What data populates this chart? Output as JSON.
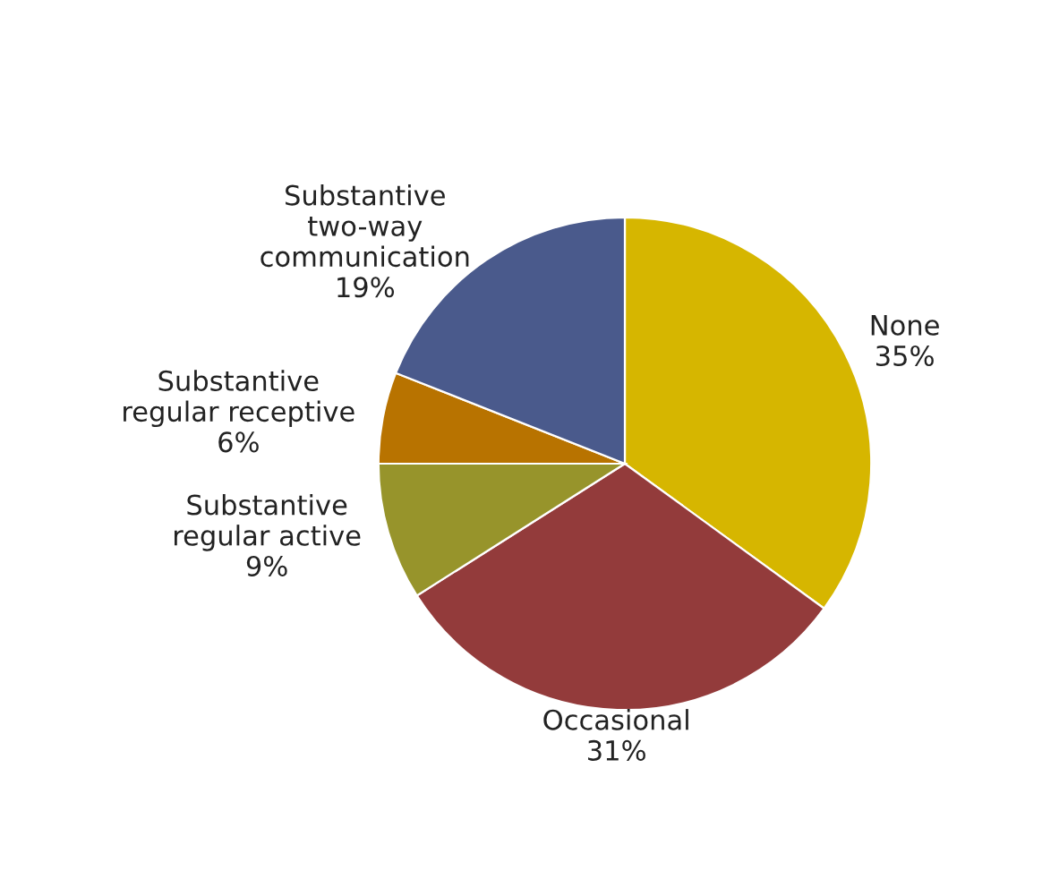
{
  "chart_data": {
    "type": "pie",
    "categories": [
      "None",
      "Occasional",
      "Substantive\nregular active",
      "Substantive\nregular receptive",
      "Substantive\ntwo-way\ncommunication"
    ],
    "values": [
      35,
      31,
      9,
      6,
      19
    ],
    "value_labels": [
      "35%",
      "31%",
      "9%",
      "6%",
      "19%"
    ],
    "colors": [
      "#d6b600",
      "#933b3b",
      "#97942b",
      "#b87300",
      "#4a5a8c"
    ]
  }
}
